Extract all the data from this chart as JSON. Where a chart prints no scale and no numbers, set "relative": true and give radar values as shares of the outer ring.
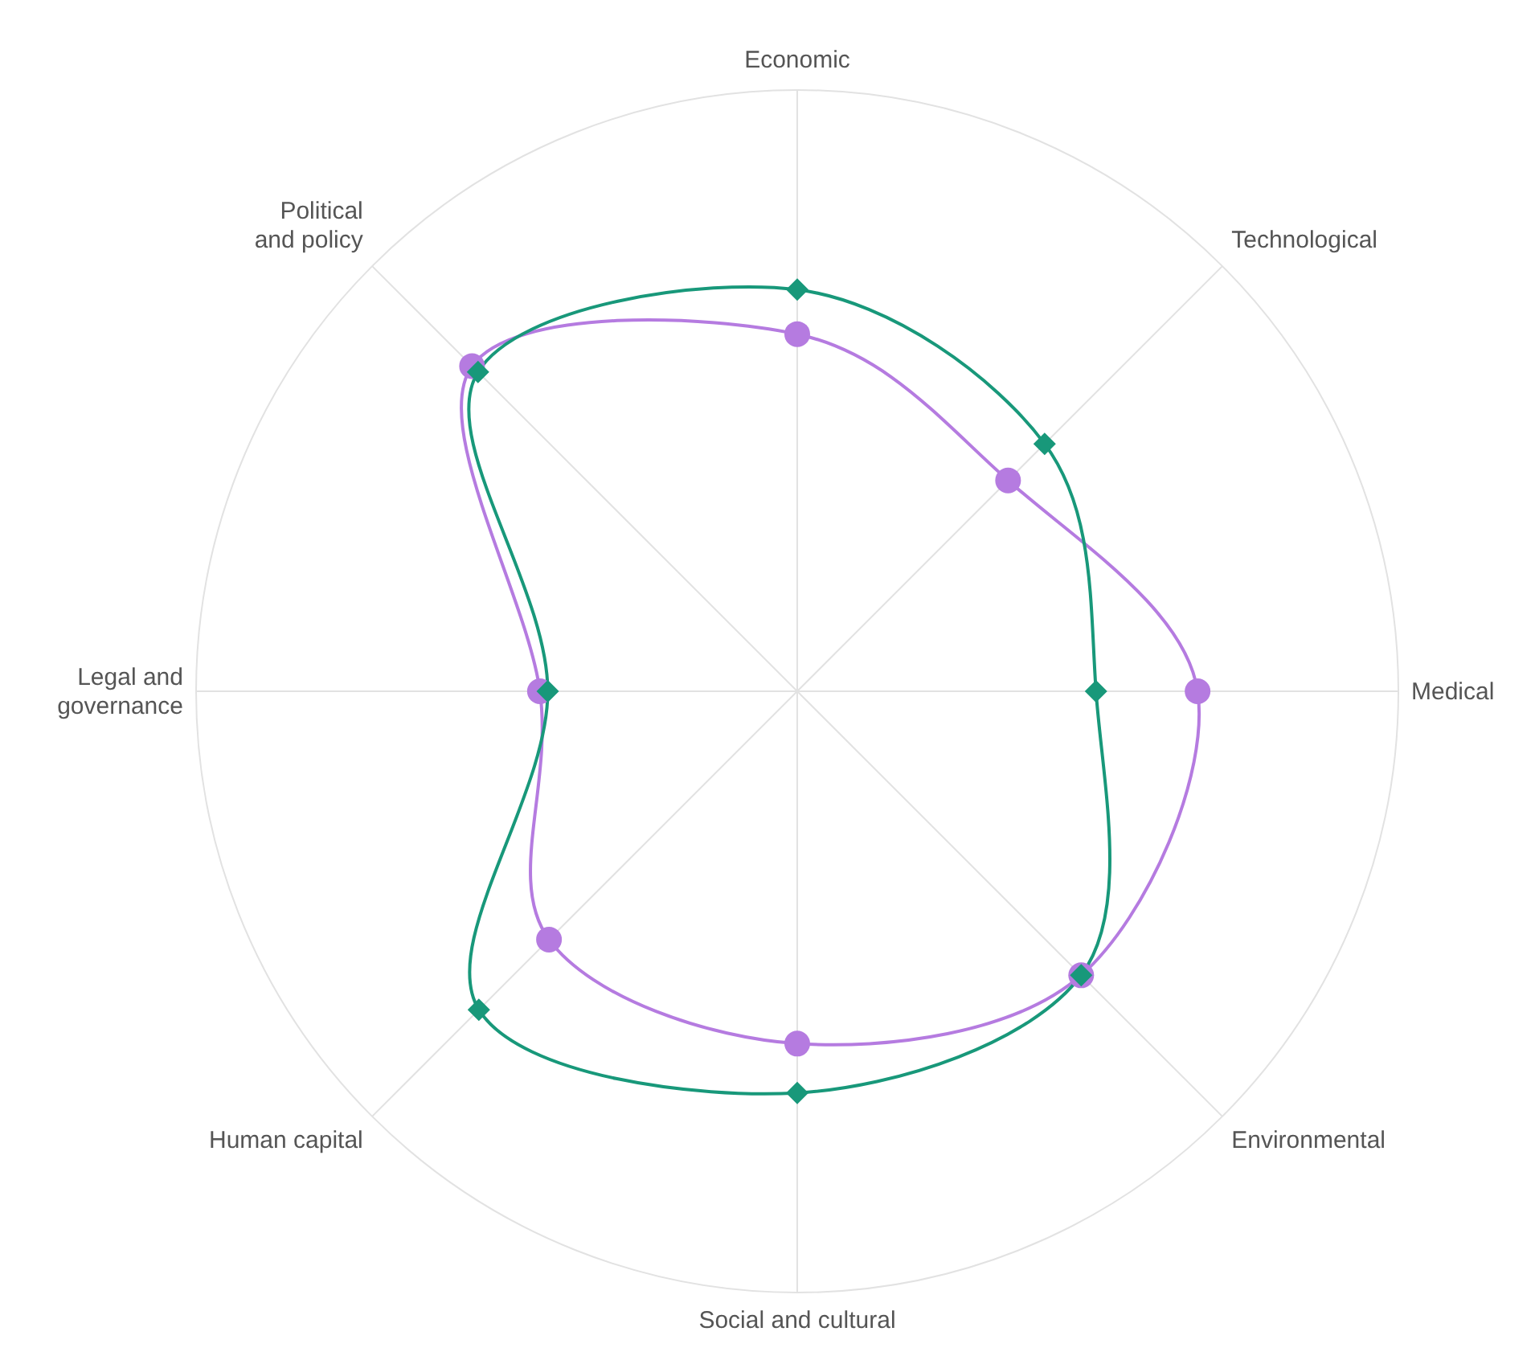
{
  "chart_data": {
    "type": "radar",
    "relative": true,
    "grid": true,
    "categories": [
      "Economic",
      "Technological",
      "Medical",
      "Environmental",
      "Social and cultural",
      "Human capital",
      "Legal and\ngovernance",
      "Political\nand policy"
    ],
    "series": [
      {
        "color": "#b57be0",
        "marker": "circle",
        "values": [
          0.594,
          0.496,
          0.666,
          0.668,
          0.586,
          0.584,
          0.428,
          0.765
        ]
      },
      {
        "color": "#18987a",
        "marker": "diamond",
        "values": [
          0.668,
          0.582,
          0.497,
          0.668,
          0.668,
          0.749,
          0.415,
          0.751
        ]
      }
    ]
  }
}
